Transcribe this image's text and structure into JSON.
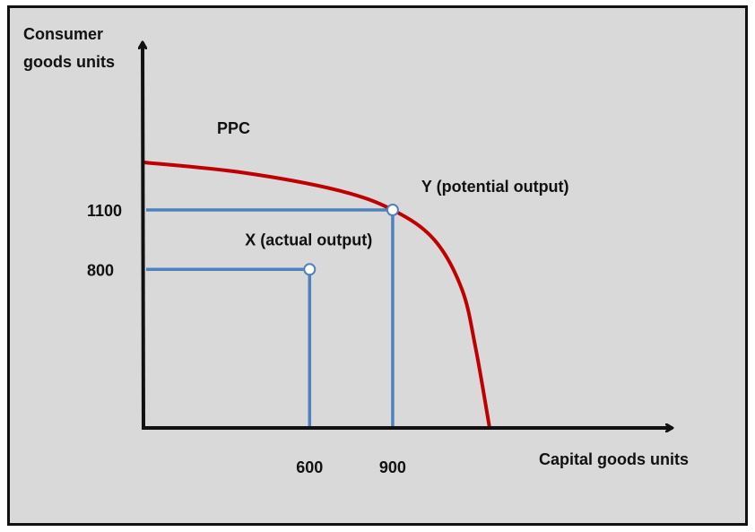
{
  "chart_data": {
    "type": "line",
    "title": "",
    "xlabel": "Capital goods units",
    "ylabel_lines": [
      "Consumer",
      "goods units"
    ],
    "x_ticks": [
      {
        "value": 600,
        "label": "600"
      },
      {
        "value": 900,
        "label": "900"
      }
    ],
    "y_ticks": [
      {
        "value": 800,
        "label": "800"
      },
      {
        "value": 1100,
        "label": "1100"
      }
    ],
    "xlim": [
      0,
      1850
    ],
    "ylim": [
      0,
      1950
    ],
    "curve": {
      "label": "PPC",
      "color": "#c00000",
      "x": [
        0,
        350,
        700,
        900,
        1050,
        1150,
        1200,
        1250
      ],
      "y": [
        1340,
        1290,
        1200,
        1100,
        950,
        700,
        400,
        0
      ]
    },
    "points": [
      {
        "label": "X (actual output)",
        "x": 600,
        "y": 800
      },
      {
        "label": "Y (potential output)",
        "x": 900,
        "y": 1100
      }
    ],
    "guide_color": "#4f81bd",
    "axis_color": "#111111",
    "point_fill": "#ffffff",
    "grid": false,
    "legend": "none"
  }
}
